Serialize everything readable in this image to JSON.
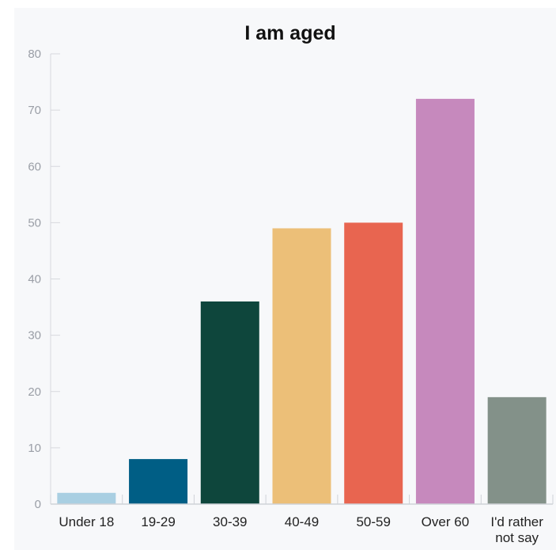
{
  "chart_data": {
    "type": "bar",
    "title": "I am aged",
    "xlabel": "",
    "ylabel": "",
    "categories": [
      "Under 18",
      "19-29",
      "30-39",
      "40-49",
      "50-59",
      "Over 60",
      "I'd rather not say"
    ],
    "category_lines": [
      [
        "Under 18"
      ],
      [
        "19-29"
      ],
      [
        "30-39"
      ],
      [
        "40-49"
      ],
      [
        "50-59"
      ],
      [
        "Over 60"
      ],
      [
        "I'd rather",
        "not say"
      ]
    ],
    "values": [
      2,
      8,
      36,
      49,
      50,
      72,
      19
    ],
    "colors": [
      "#a9cfe2",
      "#005e85",
      "#0e463c",
      "#ecbf78",
      "#e86550",
      "#c689bd",
      "#839189"
    ],
    "ylim": [
      0,
      80
    ],
    "yticks": [
      0,
      10,
      20,
      30,
      40,
      50,
      60,
      70,
      80
    ],
    "grid": false,
    "legend": "none"
  }
}
